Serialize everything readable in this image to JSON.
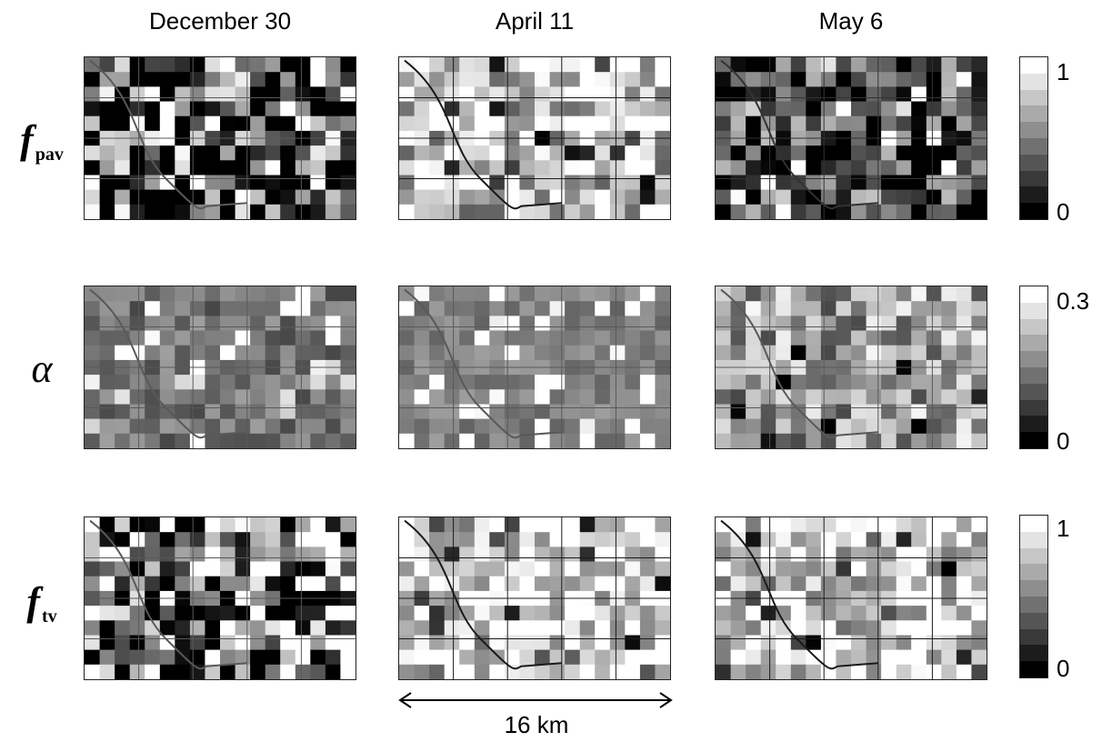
{
  "columns": [
    "December 30",
    "April 11",
    "May 6"
  ],
  "rows": [
    {
      "symbol": "f",
      "subscript": "pav",
      "cbar_max": "1",
      "cbar_min": "0"
    },
    {
      "symbol": "α",
      "subscript": "",
      "cbar_max": "0.3",
      "cbar_min": "0"
    },
    {
      "symbol": "f",
      "subscript": "tv",
      "cbar_max": "1",
      "cbar_min": "0"
    }
  ],
  "scale_bar": {
    "label": "16 km"
  },
  "panels": [
    {
      "mean": 0.22,
      "contrast": 0.9,
      "road": 0.35
    },
    {
      "mean": 0.82,
      "contrast": 0.45,
      "road": 0.1
    },
    {
      "mean": 0.2,
      "contrast": 0.55,
      "road": 0.2
    },
    {
      "mean": 0.45,
      "contrast": 0.18,
      "road": 0.35
    },
    {
      "mean": 0.5,
      "contrast": 0.12,
      "road": 0.35
    },
    {
      "mean": 0.62,
      "contrast": 0.35,
      "road": 0.35
    },
    {
      "mean": 0.4,
      "contrast": 0.9,
      "road": 0.35
    },
    {
      "mean": 0.86,
      "contrast": 0.35,
      "road": 0.1
    },
    {
      "mean": 0.84,
      "contrast": 0.38,
      "road": 0.1
    }
  ],
  "colors": {
    "background": "#ffffff",
    "frame": "#222222"
  }
}
